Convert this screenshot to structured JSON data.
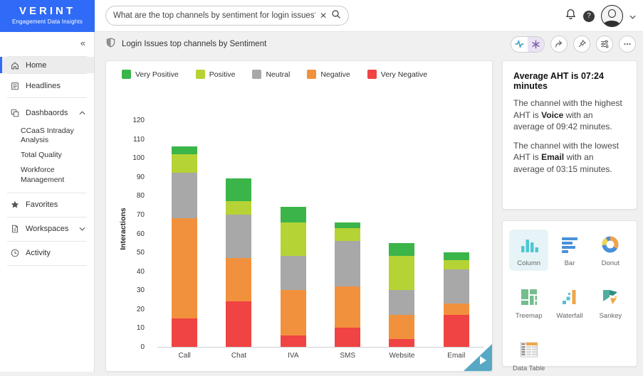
{
  "brand": {
    "name": "VERINT",
    "subtitle": "Engagement Data Insights",
    "color": "#2f6bf6"
  },
  "header": {
    "search_value": "What are the top channels by sentiment for login issues?",
    "clear_glyph": "✕"
  },
  "sidebar": {
    "collapse_glyph": "«",
    "items": [
      {
        "label": "Home"
      },
      {
        "label": "Headlines"
      },
      {
        "label": "Dashbaords"
      },
      {
        "label": "Favorites"
      },
      {
        "label": "Workspaces"
      },
      {
        "label": "Activity"
      }
    ],
    "dashboard_children": [
      "CCaaS Intraday Analysis",
      "Total Quality",
      "Workforce Management"
    ]
  },
  "titlebar": {
    "title": "Login Issues top channels by Sentiment"
  },
  "insights": {
    "heading": "Average AHT is 07:24 minutes",
    "p1_before": "The channel with the highest AHT is ",
    "p1_bold": "Voice",
    "p1_after": " with an average of 09:42 minutes.",
    "p2_before": "The channel with the lowest AHT is ",
    "p2_bold": "Email",
    "p2_after": " with an average of 03:15 minutes."
  },
  "picker": {
    "items": [
      {
        "label": "Column",
        "selected": true
      },
      {
        "label": "Bar",
        "selected": false
      },
      {
        "label": "Donut",
        "selected": false
      },
      {
        "label": "Treemap",
        "selected": false
      },
      {
        "label": "Waterfall",
        "selected": false
      },
      {
        "label": "Sankey",
        "selected": false
      },
      {
        "label": "Data Table",
        "selected": false
      }
    ]
  },
  "chart_data": {
    "type": "bar",
    "stacked": true,
    "title": "Login Issues top channels by Sentiment",
    "categories": [
      "Call",
      "Chat",
      "IVA",
      "SMS",
      "Website",
      "Email"
    ],
    "series": [
      {
        "name": "Very Negative",
        "color": "#f04343",
        "values": [
          15,
          24,
          6,
          10,
          4,
          17
        ]
      },
      {
        "name": "Negative",
        "color": "#f2913d",
        "values": [
          53,
          23,
          24,
          22,
          13,
          6
        ]
      },
      {
        "name": "Neutral",
        "color": "#a8a8a8",
        "values": [
          24,
          23,
          18,
          24,
          13,
          18
        ]
      },
      {
        "name": "Positive",
        "color": "#b5d334",
        "values": [
          10,
          7,
          18,
          7,
          18,
          5
        ]
      },
      {
        "name": "Very Positive",
        "color": "#3bb54a",
        "values": [
          4,
          12,
          8,
          3,
          7,
          4
        ]
      }
    ],
    "legend_order": [
      "Very Positive",
      "Positive",
      "Neutral",
      "Negative",
      "Very Negative"
    ],
    "xlabel": "",
    "ylabel": "Interactions",
    "ylim": [
      0,
      120
    ],
    "ytick_step": 10,
    "grid": false,
    "legend_position": "top"
  }
}
